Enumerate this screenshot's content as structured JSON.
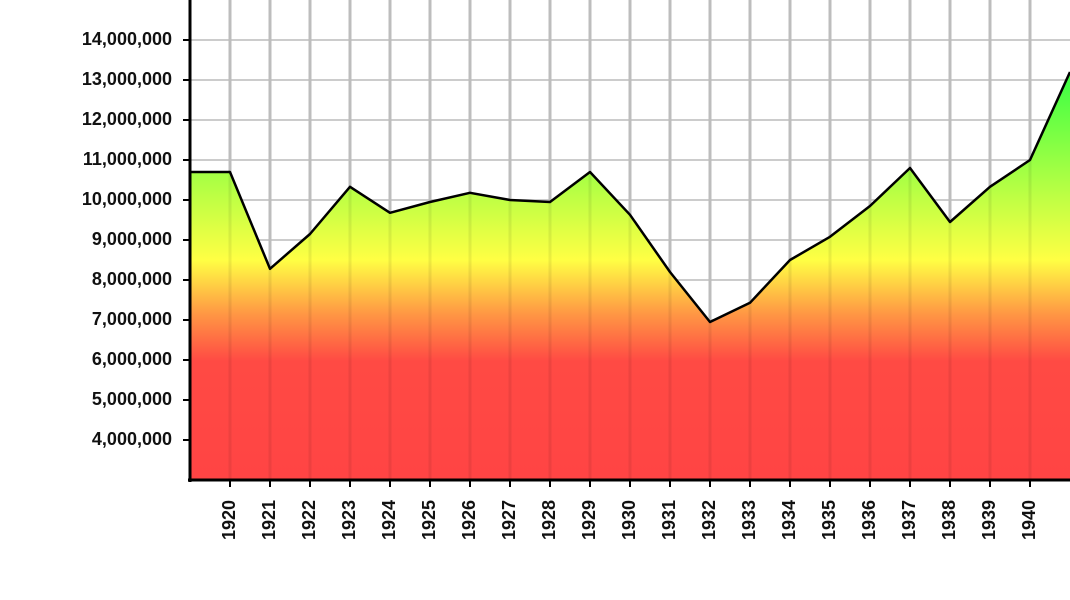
{
  "chart_data": {
    "type": "area",
    "x": [
      1919,
      1920,
      1921,
      1922,
      1923,
      1924,
      1925,
      1926,
      1927,
      1928,
      1929,
      1930,
      1931,
      1932,
      1933,
      1934,
      1935,
      1936,
      1937,
      1938,
      1939,
      1940,
      1941
    ],
    "values": [
      10700000,
      10700000,
      8280000,
      9150000,
      10330000,
      9680000,
      9950000,
      10180000,
      10000000,
      9950000,
      10700000,
      9630000,
      8200000,
      6950000,
      7430000,
      8500000,
      9080000,
      9850000,
      10800000,
      9450000,
      10330000,
      11000000,
      13200000
    ],
    "xlim": [
      1919,
      1941
    ],
    "xticks": [
      1920,
      1921,
      1922,
      1923,
      1924,
      1925,
      1926,
      1927,
      1928,
      1929,
      1930,
      1931,
      1932,
      1933,
      1934,
      1935,
      1936,
      1937,
      1938,
      1939,
      1940
    ],
    "ylim": [
      3000000,
      15000000
    ],
    "yticks": [
      {
        "value": 4000000,
        "label": "4,000,000"
      },
      {
        "value": 5000000,
        "label": "5,000,000"
      },
      {
        "value": 6000000,
        "label": "6,000,000"
      },
      {
        "value": 7000000,
        "label": "7,000,000"
      },
      {
        "value": 8000000,
        "label": "8,000,000"
      },
      {
        "value": 9000000,
        "label": "9,000,000"
      },
      {
        "value": 10000000,
        "label": "10,000,000"
      },
      {
        "value": 11000000,
        "label": "11,000,000"
      },
      {
        "value": 12000000,
        "label": "12,000,000"
      },
      {
        "value": 13000000,
        "label": "13,000,000"
      },
      {
        "value": 14000000,
        "label": "14,000,000"
      }
    ],
    "grid": true
  }
}
